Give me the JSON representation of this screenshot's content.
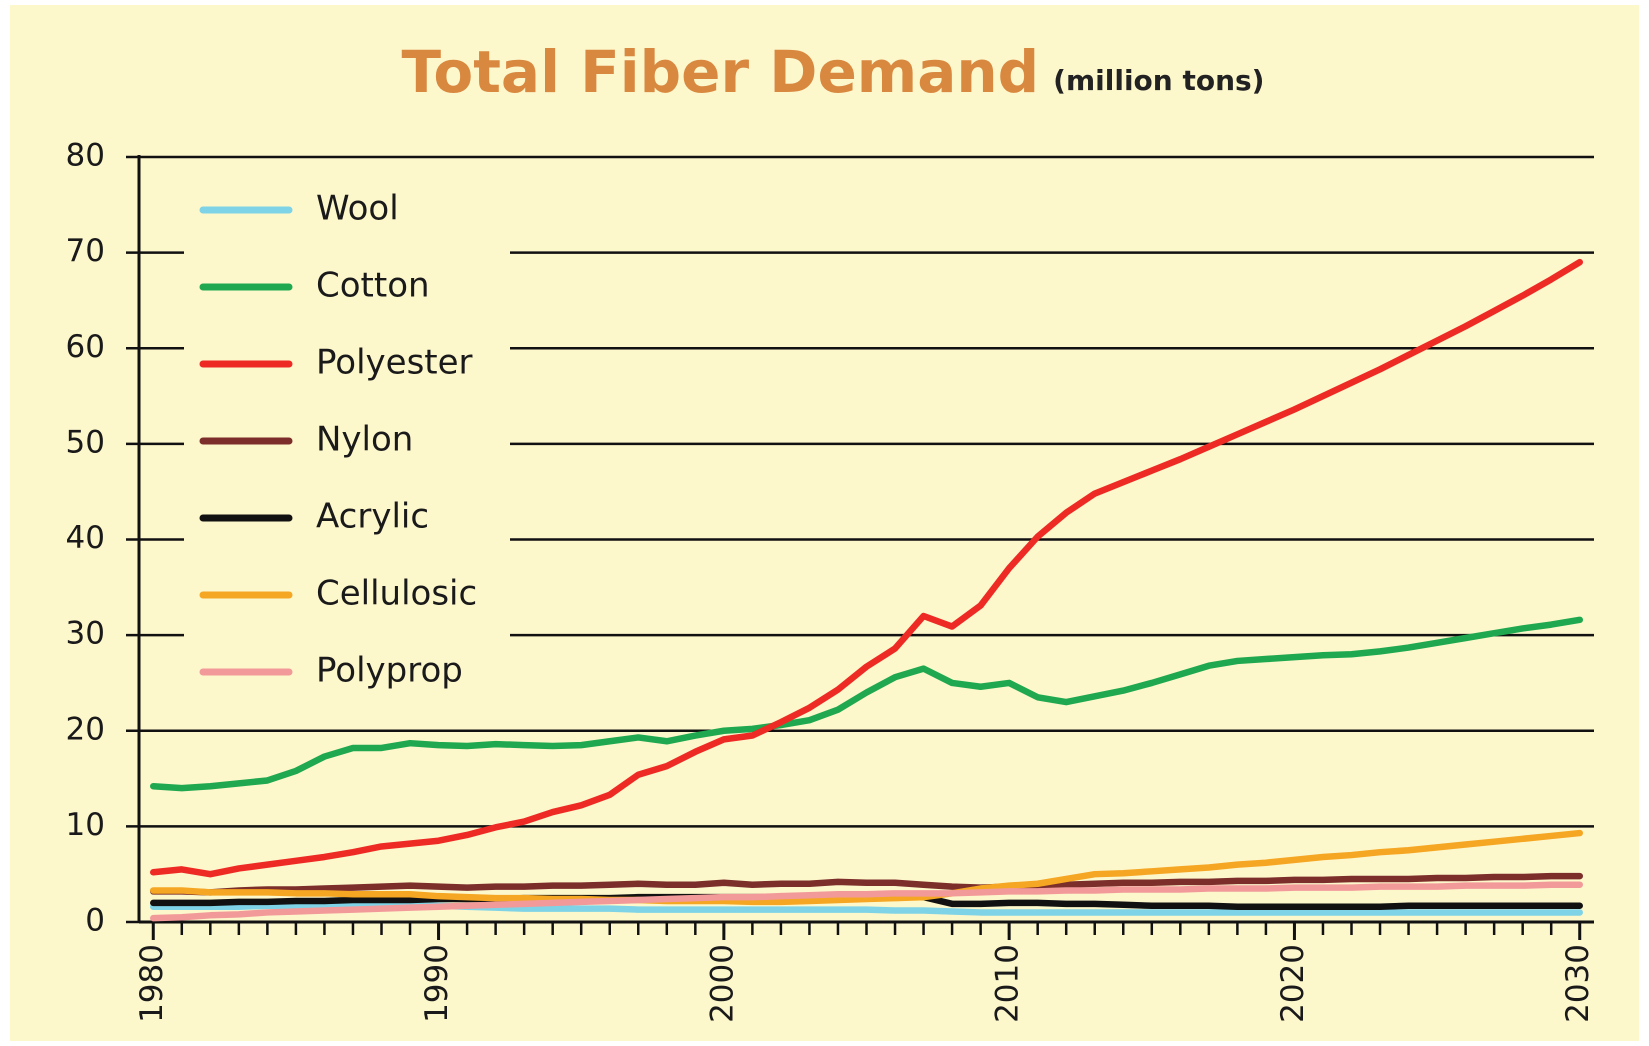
{
  "chart_data": {
    "type": "line",
    "title": "Total Fiber Demand",
    "subtitle": "(million tons)",
    "x": [
      1980,
      1981,
      1982,
      1983,
      1984,
      1985,
      1986,
      1987,
      1988,
      1989,
      1990,
      1991,
      1992,
      1993,
      1994,
      1995,
      1996,
      1997,
      1998,
      1999,
      2000,
      2001,
      2002,
      2003,
      2004,
      2005,
      2006,
      2007,
      2008,
      2009,
      2010,
      2011,
      2012,
      2013,
      2014,
      2015,
      2016,
      2017,
      2018,
      2019,
      2020,
      2021,
      2022,
      2023,
      2024,
      2025,
      2026,
      2027,
      2028,
      2029,
      2030
    ],
    "series": [
      {
        "name": "Wool",
        "color": "#7fd3e6",
        "values": [
          1.6,
          1.6,
          1.6,
          1.6,
          1.7,
          1.7,
          1.7,
          1.8,
          1.8,
          1.8,
          1.7,
          1.6,
          1.5,
          1.4,
          1.4,
          1.4,
          1.4,
          1.3,
          1.3,
          1.3,
          1.3,
          1.3,
          1.3,
          1.3,
          1.3,
          1.3,
          1.2,
          1.2,
          1.1,
          1.0,
          1.0,
          1.0,
          1.0,
          1.0,
          1.0,
          1.0,
          1.0,
          1.0,
          1.0,
          1.0,
          1.0,
          1.0,
          1.0,
          1.0,
          1.0,
          1.0,
          1.0,
          1.0,
          1.0,
          1.0,
          1.0
        ]
      },
      {
        "name": "Cotton",
        "color": "#1fa84f",
        "values": [
          14.2,
          14.0,
          14.2,
          14.5,
          14.8,
          15.8,
          17.3,
          18.2,
          18.2,
          18.7,
          18.5,
          18.4,
          18.6,
          18.5,
          18.4,
          18.5,
          18.9,
          19.3,
          18.9,
          19.5,
          20.0,
          20.2,
          20.6,
          21.1,
          22.2,
          24.0,
          25.6,
          26.5,
          25.0,
          24.6,
          25.0,
          23.5,
          23.0,
          23.6,
          24.2,
          25.0,
          25.9,
          26.8,
          27.3,
          27.5,
          27.7,
          27.9,
          28.0,
          28.3,
          28.7,
          29.2,
          29.7,
          30.2,
          30.7,
          31.1,
          31.6
        ]
      },
      {
        "name": "Polyester",
        "color": "#ee2a24",
        "values": [
          5.2,
          5.5,
          5.0,
          5.6,
          6.0,
          6.4,
          6.8,
          7.3,
          7.9,
          8.2,
          8.5,
          9.1,
          9.9,
          10.5,
          11.5,
          12.2,
          13.3,
          15.4,
          16.3,
          17.8,
          19.1,
          19.5,
          20.9,
          22.4,
          24.3,
          26.7,
          28.6,
          32.0,
          30.9,
          33.1,
          37.0,
          40.3,
          42.8,
          44.8,
          46.0,
          47.2,
          48.4,
          49.7,
          51.0,
          52.3,
          53.6,
          55.0,
          56.4,
          57.8,
          59.3,
          60.8,
          62.3,
          63.9,
          65.5,
          67.2,
          69.0
        ]
      },
      {
        "name": "Nylon",
        "color": "#7b2e2a",
        "values": [
          3.2,
          3.2,
          3.1,
          3.3,
          3.4,
          3.4,
          3.5,
          3.6,
          3.7,
          3.8,
          3.7,
          3.6,
          3.7,
          3.7,
          3.8,
          3.8,
          3.9,
          4.0,
          3.9,
          3.9,
          4.1,
          3.9,
          4.0,
          4.0,
          4.2,
          4.1,
          4.1,
          3.9,
          3.7,
          3.6,
          3.7,
          3.8,
          3.9,
          4.0,
          4.1,
          4.1,
          4.2,
          4.2,
          4.3,
          4.3,
          4.4,
          4.4,
          4.5,
          4.5,
          4.5,
          4.6,
          4.6,
          4.7,
          4.7,
          4.8,
          4.8
        ]
      },
      {
        "name": "Acrylic",
        "color": "#111111",
        "values": [
          2.0,
          2.0,
          2.0,
          2.1,
          2.1,
          2.2,
          2.2,
          2.3,
          2.3,
          2.3,
          2.4,
          2.4,
          2.4,
          2.5,
          2.5,
          2.5,
          2.5,
          2.6,
          2.6,
          2.6,
          2.6,
          2.6,
          2.6,
          2.7,
          2.7,
          2.7,
          2.7,
          2.6,
          1.9,
          1.9,
          2.0,
          2.0,
          1.9,
          1.9,
          1.8,
          1.7,
          1.7,
          1.7,
          1.6,
          1.6,
          1.6,
          1.6,
          1.6,
          1.6,
          1.7,
          1.7,
          1.7,
          1.7,
          1.7,
          1.7,
          1.7
        ]
      },
      {
        "name": "Cellulosic",
        "color": "#f5a623",
        "values": [
          3.3,
          3.3,
          3.1,
          3.1,
          3.1,
          3.0,
          3.0,
          2.9,
          2.9,
          2.9,
          2.7,
          2.6,
          2.5,
          2.5,
          2.4,
          2.4,
          2.3,
          2.3,
          2.2,
          2.2,
          2.2,
          2.1,
          2.1,
          2.2,
          2.3,
          2.4,
          2.5,
          2.6,
          3.0,
          3.5,
          3.8,
          4.0,
          4.5,
          5.0,
          5.1,
          5.3,
          5.5,
          5.7,
          6.0,
          6.2,
          6.5,
          6.8,
          7.0,
          7.3,
          7.5,
          7.8,
          8.1,
          8.4,
          8.7,
          9.0,
          9.3
        ]
      },
      {
        "name": "Polyprop",
        "color": "#f29a9a",
        "values": [
          0.4,
          0.5,
          0.7,
          0.8,
          1.0,
          1.1,
          1.2,
          1.3,
          1.4,
          1.5,
          1.6,
          1.7,
          1.8,
          1.9,
          2.0,
          2.1,
          2.2,
          2.3,
          2.4,
          2.5,
          2.6,
          2.6,
          2.7,
          2.8,
          2.9,
          2.9,
          3.0,
          3.0,
          3.0,
          3.1,
          3.2,
          3.2,
          3.3,
          3.3,
          3.4,
          3.4,
          3.4,
          3.5,
          3.5,
          3.5,
          3.6,
          3.6,
          3.6,
          3.7,
          3.7,
          3.7,
          3.8,
          3.8,
          3.8,
          3.9,
          3.9
        ]
      }
    ],
    "xlim": [
      1979.5,
      2030.5
    ],
    "xticks": [
      1980,
      1990,
      2000,
      2010,
      2020,
      2030
    ],
    "xminorticks": [
      1980,
      1981,
      1982,
      1983,
      1984,
      1985,
      1986,
      1987,
      1988,
      1989,
      1990,
      1991,
      1992,
      1993,
      1994,
      1995,
      1996,
      1997,
      1998,
      1999,
      2000,
      2001,
      2002,
      2003,
      2004,
      2005,
      2006,
      2007,
      2008,
      2009,
      2010,
      2011,
      2012,
      2013,
      2014,
      2015,
      2016,
      2017,
      2018,
      2019,
      2020,
      2021,
      2022,
      2023,
      2024,
      2025,
      2026,
      2027,
      2028,
      2029,
      2030
    ],
    "ylim": [
      0,
      80
    ],
    "yticks": [
      0,
      10,
      20,
      30,
      40,
      50,
      60,
      70,
      80
    ],
    "grid": true,
    "legend": "upper left"
  }
}
